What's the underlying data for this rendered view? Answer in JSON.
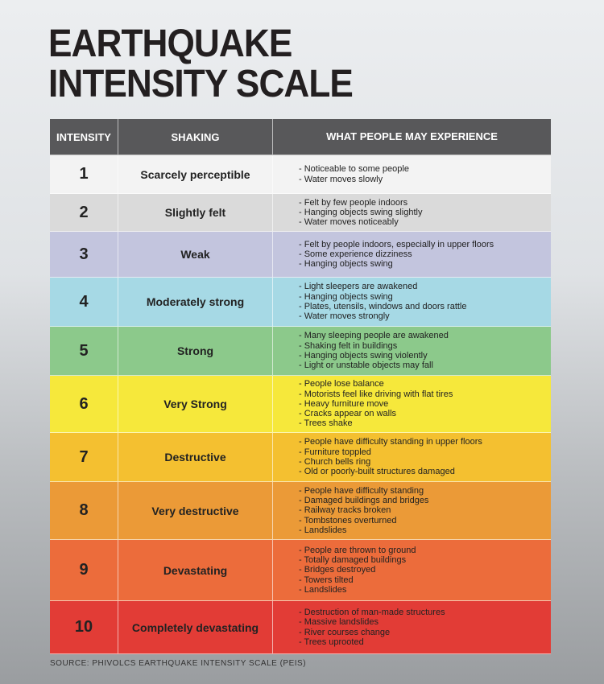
{
  "header": {
    "title": [
      "EARTHQUAKE",
      "INTENSITY SCALE"
    ]
  },
  "table": {
    "columns": [
      "INTENSITY",
      "SHAKING",
      "WHAT PEOPLE MAY EXPERIENCE"
    ],
    "header_color": "#58585a",
    "rows": [
      {
        "intensity": 1,
        "shaking": "Scarcely perceptible",
        "color": "#f3f3f3",
        "experience": [
          "- Noticeable to some people",
          "- Water moves slowly"
        ]
      },
      {
        "intensity": 2,
        "shaking": "Slightly felt",
        "color": "#dadada",
        "experience": [
          "- Felt by few people indoors",
          "- Hanging objects swing slightly",
          "- Water moves noticeably"
        ]
      },
      {
        "intensity": 3,
        "shaking": "Weak",
        "color": "#c3c5de",
        "experience": [
          "- Felt by people indoors, especially in upper floors",
          "- Some experience dizziness",
          "- Hanging objects swing"
        ]
      },
      {
        "intensity": 4,
        "shaking": "Moderately strong",
        "color": "#a6d9e5",
        "experience": [
          "- Light sleepers are awakened",
          "- Hanging objects swing",
          "- Plates, utensils, windows and doors rattle",
          "- Water moves strongly"
        ]
      },
      {
        "intensity": 5,
        "shaking": "Strong",
        "color": "#8cc98b",
        "experience": [
          "- Many sleeping people are awakened",
          "- Shaking felt in buildings",
          "- Hanging objects swing violently",
          "- Light or unstable objects may fall"
        ]
      },
      {
        "intensity": 6,
        "shaking": "Very Strong",
        "color": "#f6e83b",
        "experience": [
          "- People lose balance",
          "- Motorists feel like driving with flat tires",
          "- Heavy furniture move",
          "- Cracks appear on walls",
          "- Trees shake"
        ]
      },
      {
        "intensity": 7,
        "shaking": "Destructive",
        "color": "#f4c030",
        "experience": [
          "- People have difficulty standing in upper floors",
          "- Furniture toppled",
          "- Church bells ring",
          "- Old or poorly-built structures damaged"
        ]
      },
      {
        "intensity": 8,
        "shaking": "Very destructive",
        "color": "#eb9a37",
        "experience": [
          "- People have difficulty standing",
          "- Damaged buildings and bridges",
          "- Railway tracks broken",
          "- Tombstones overturned",
          "- Landslides"
        ]
      },
      {
        "intensity": 9,
        "shaking": "Devastating",
        "color": "#ec6c3b",
        "experience": [
          "- People are thrown to ground",
          "- Totally damaged buildings",
          "- Bridges destroyed",
          "- Towers tilted",
          "- Landslides"
        ]
      },
      {
        "intensity": 10,
        "shaking": "Completely devastating",
        "color": "#e23c36",
        "experience": [
          "- Destruction of man-made structures",
          "- Massive landslides",
          "- River courses change",
          "- Trees uprooted"
        ]
      }
    ]
  },
  "footer": {
    "source": "SOURCE: PHIVOLCS EARTHQUAKE INTENSITY SCALE (PEIS)"
  }
}
